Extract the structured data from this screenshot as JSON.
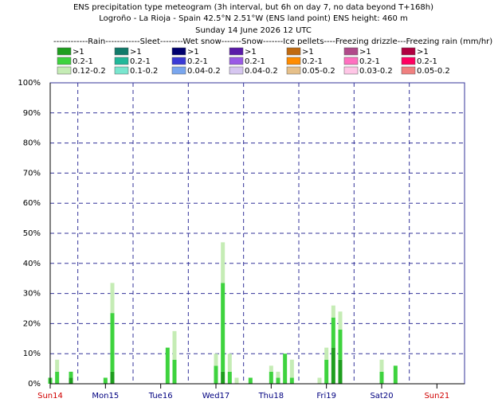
{
  "chart_data": {
    "type": "stacked_bar",
    "title": "ENS precipitation type meteogram (3h interval, but 6h on day 7, no data beyond T+168h)",
    "subtitle": "Logroño - La Rioja - Spain 42.5°N 2.51°W (ENS land point) ENS height: 460 m",
    "date": "Sunday 14 June 2026 12 UTC",
    "legend_header": "------------Rain------------Sleet--------Wet snow-------Snow-------Ice pellets----Freezing drizzle---Freezing rain (mm/hr)",
    "groups": [
      {
        "series": [
          {
            "name": ">1",
            "color": "#1e9e1e",
            "values": [
              0,
              0,
              2,
              0,
              4,
              0,
              0,
              0,
              4,
              0,
              0,
              0,
              0,
              0,
              0,
              0,
              0,
              0,
              12,
              8,
              0,
              0
            ]
          },
          {
            "name": "0.2-1",
            "color": "#3ed33e",
            "values": [
              2,
              4,
              2,
              2,
              19.5,
              12,
              8,
              6,
              29.5,
              4,
              0,
              2,
              4,
              2,
              10,
              2,
              0,
              8,
              10,
              10,
              4,
              6
            ]
          },
          {
            "name": "0.12-0.2",
            "color": "#c5ecb5",
            "values": [
              0,
              4,
              0,
              0,
              10,
              0,
              9.5,
              4,
              13.5,
              6,
              2,
              0,
              2,
              2,
              0,
              6,
              2,
              4,
              4,
              6,
              4,
              0
            ]
          }
        ]
      },
      {
        "series": [
          {
            "name": ">1",
            "color": "#117a6a"
          },
          {
            "name": "0.2-1",
            "color": "#22b89a"
          },
          {
            "name": "0.1-0.2",
            "color": "#7ae6cf"
          }
        ]
      },
      {
        "series": [
          {
            "name": ">1",
            "color": "#00006e"
          },
          {
            "name": "0.2-1",
            "color": "#3a3ad6"
          },
          {
            "name": "0.04-0.2",
            "color": "#7aa6ee"
          }
        ]
      },
      {
        "series": [
          {
            "name": ">1",
            "color": "#5a1aa8"
          },
          {
            "name": "0.2-1",
            "color": "#9a5ae6"
          },
          {
            "name": "0.04-0.2",
            "color": "#d6c6f0"
          }
        ]
      },
      {
        "series": [
          {
            "name": ">1",
            "color": "#c06a10"
          },
          {
            "name": "0.2-1",
            "color": "#ff8c00"
          },
          {
            "name": "0.05-0.2",
            "color": "#e6c08a"
          }
        ]
      },
      {
        "series": [
          {
            "name": ">1",
            "color": "#b04a8a"
          },
          {
            "name": "0.2-1",
            "color": "#ff70c0"
          },
          {
            "name": "0.03-0.2",
            "color": "#ffc6e6"
          }
        ]
      },
      {
        "series": [
          {
            "name": ">1",
            "color": "#b00040"
          },
          {
            "name": "0.2-1",
            "color": "#ff0060"
          },
          {
            "name": "0.05-0.2",
            "color": "#f08080"
          }
        ]
      }
    ],
    "x": [
      0,
      3,
      9,
      24,
      27,
      51,
      54,
      72,
      75,
      78,
      81,
      87,
      96,
      99,
      102,
      105,
      117,
      120,
      123,
      126,
      144,
      150
    ],
    "xlim": [
      0,
      180
    ],
    "xticks": [
      {
        "value": 0,
        "label": "Sun14"
      },
      {
        "value": 24,
        "label": "Mon15"
      },
      {
        "value": 48,
        "label": "Tue16"
      },
      {
        "value": 72,
        "label": "Wed17"
      },
      {
        "value": 96,
        "label": "Thu18"
      },
      {
        "value": 120,
        "label": "Fri19"
      },
      {
        "value": 144,
        "label": "Sat20"
      },
      {
        "value": 168,
        "label": "Sun21"
      }
    ],
    "xtick_label_colors": [
      "#d00000",
      "#000080",
      "#000080",
      "#000080",
      "#000080",
      "#000080",
      "#000080",
      "#d00000"
    ],
    "xgrid": [
      12,
      36,
      60,
      84,
      108,
      132,
      156
    ],
    "ylim": [
      0,
      100
    ],
    "yticks": [
      {
        "value": 0,
        "label": "0%"
      },
      {
        "value": 10,
        "label": "10%"
      },
      {
        "value": 20,
        "label": "20%"
      },
      {
        "value": 30,
        "label": "30%"
      },
      {
        "value": 40,
        "label": "40%"
      },
      {
        "value": 50,
        "label": "50%"
      },
      {
        "value": 60,
        "label": "60%"
      },
      {
        "value": 70,
        "label": "70%"
      },
      {
        "value": 80,
        "label": "80%"
      },
      {
        "value": 90,
        "label": "90%"
      },
      {
        "value": 100,
        "label": "100%"
      }
    ],
    "grid": true
  }
}
